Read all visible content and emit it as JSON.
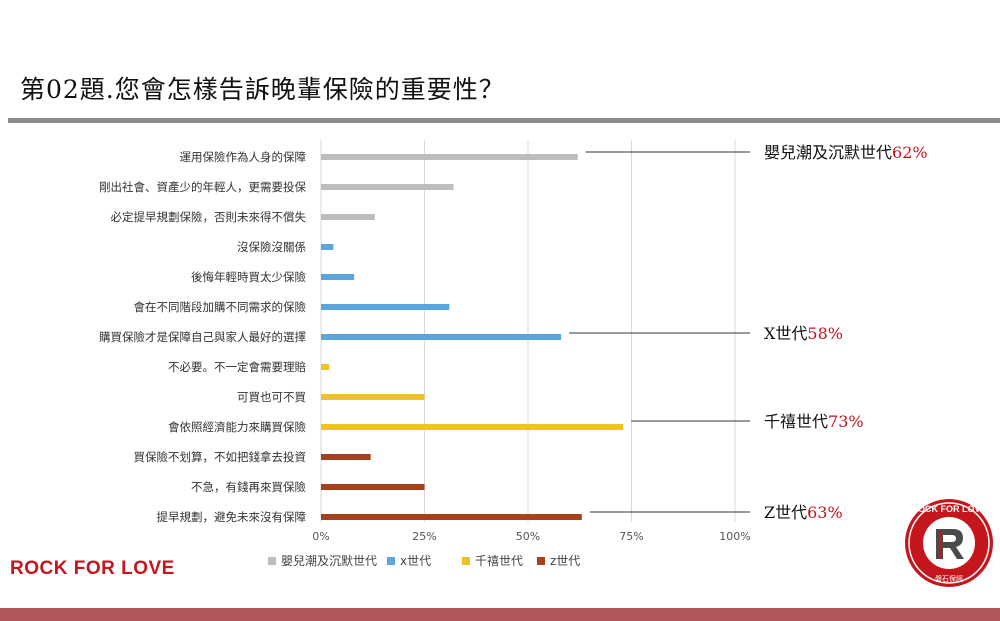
{
  "title": "第02題.您會怎樣告訴晚輩保險的重要性？",
  "brand": "ROCK FOR LOVE",
  "colors": {
    "boomers": "#bdbdbd",
    "genx": "#5aa5dc",
    "millennials": "#efc227",
    "genz": "#a5421c",
    "callout_pct": "#c0141c",
    "brand": "#c4161c"
  },
  "callouts": [
    {
      "label": "嬰兒潮及沉默世代",
      "pct": "62%"
    },
    {
      "label": "X世代",
      "pct": "58%"
    },
    {
      "label": "千禧世代",
      "pct": "73%"
    },
    {
      "label": "Z世代",
      "pct": "63%"
    }
  ],
  "logo": {
    "top_text": "ROCK FOR LOVE",
    "letter": "R",
    "bottom_text": "磐石保經"
  },
  "chart_data": {
    "type": "bar",
    "orientation": "horizontal",
    "categories": [
      "運用保險作為人身的保障",
      "剛出社會、資產少的年輕人，更需要投保",
      "必定提早規劃保險，否則未來得不償失",
      "沒保險沒關係",
      "後悔年輕時買太少保險",
      "會在不同階段加購不同需求的保險",
      "購買保險才是保障自己與家人最好的選擇",
      "不必要。不一定會需要理賠",
      "可買也可不買",
      "會依照經濟能力來購買保險",
      "買保險不划算，不如把錢拿去投資",
      "不急，有錢再來買保險",
      "提早規劃，避免未來沒有保障"
    ],
    "series": [
      {
        "name": "嬰兒潮及沉默世代",
        "color": "#bdbdbd",
        "values": [
          62,
          32,
          13,
          null,
          null,
          null,
          null,
          null,
          null,
          null,
          null,
          null,
          null
        ]
      },
      {
        "name": "x世代",
        "color": "#5aa5dc",
        "values": [
          null,
          null,
          null,
          3,
          8,
          31,
          58,
          null,
          null,
          null,
          null,
          null,
          null
        ]
      },
      {
        "name": "千禧世代",
        "color": "#efc227",
        "values": [
          null,
          null,
          null,
          null,
          null,
          null,
          null,
          2,
          25,
          73,
          null,
          null,
          null
        ]
      },
      {
        "name": "z世代",
        "color": "#a5421c",
        "values": [
          null,
          null,
          null,
          null,
          null,
          null,
          null,
          null,
          null,
          null,
          12,
          25,
          63
        ]
      }
    ],
    "xlim": [
      0,
      100
    ],
    "xticks": [
      "0%",
      "25%",
      "50%",
      "75%",
      "100%"
    ],
    "grid": true,
    "legend": "bottom"
  }
}
